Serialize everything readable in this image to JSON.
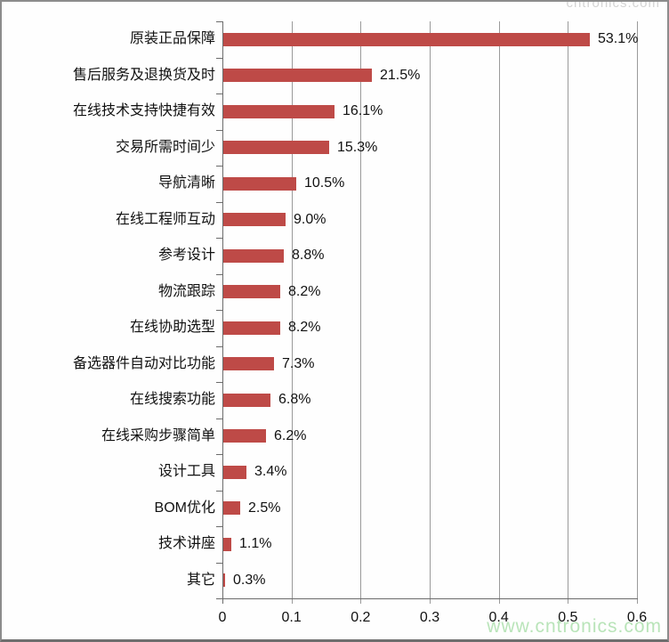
{
  "watermark": {
    "bottom_text": "www.cntronics.com",
    "top_fragment": "chtronics.com",
    "color": "#b9e4b9"
  },
  "colors": {
    "bar": "#be4a47",
    "gridline": "#9a9a9a",
    "axis": "#6b6b6b",
    "text": "#111111",
    "frame_border": "#8c8c8c",
    "background": "#fefefe"
  },
  "chart_data": {
    "type": "bar",
    "orientation": "horizontal",
    "title": "",
    "xlabel": "",
    "ylabel": "",
    "grid": true,
    "legend": false,
    "xlim": [
      0,
      0.6
    ],
    "x_ticks": [
      0,
      0.1,
      0.2,
      0.3,
      0.4,
      0.5,
      0.6
    ],
    "x_tick_labels": [
      "0",
      "0.1",
      "0.2",
      "0.3",
      "0.4",
      "0.5",
      "0.6"
    ],
    "categories": [
      "原装正品保障",
      "售后服务及退换货及时",
      "在线技术支持快捷有效",
      "交易所需时间少",
      "导航清晰",
      "在线工程师互动",
      "参考设计",
      "物流跟踪",
      "在线协助选型",
      "备选器件自动对比功能",
      "在线搜索功能",
      "在线采购步骤简单",
      "设计工具",
      "BOM优化",
      "技术讲座",
      "其它"
    ],
    "values": [
      0.531,
      0.215,
      0.161,
      0.153,
      0.105,
      0.09,
      0.088,
      0.082,
      0.082,
      0.073,
      0.068,
      0.062,
      0.034,
      0.025,
      0.011,
      0.003
    ],
    "value_labels": [
      "53.1%",
      "21.5%",
      "16.1%",
      "15.3%",
      "10.5%",
      "9.0%",
      "8.8%",
      "8.2%",
      "8.2%",
      "7.3%",
      "6.8%",
      "6.2%",
      "3.4%",
      "2.5%",
      "1.1%",
      "0.3%"
    ]
  }
}
